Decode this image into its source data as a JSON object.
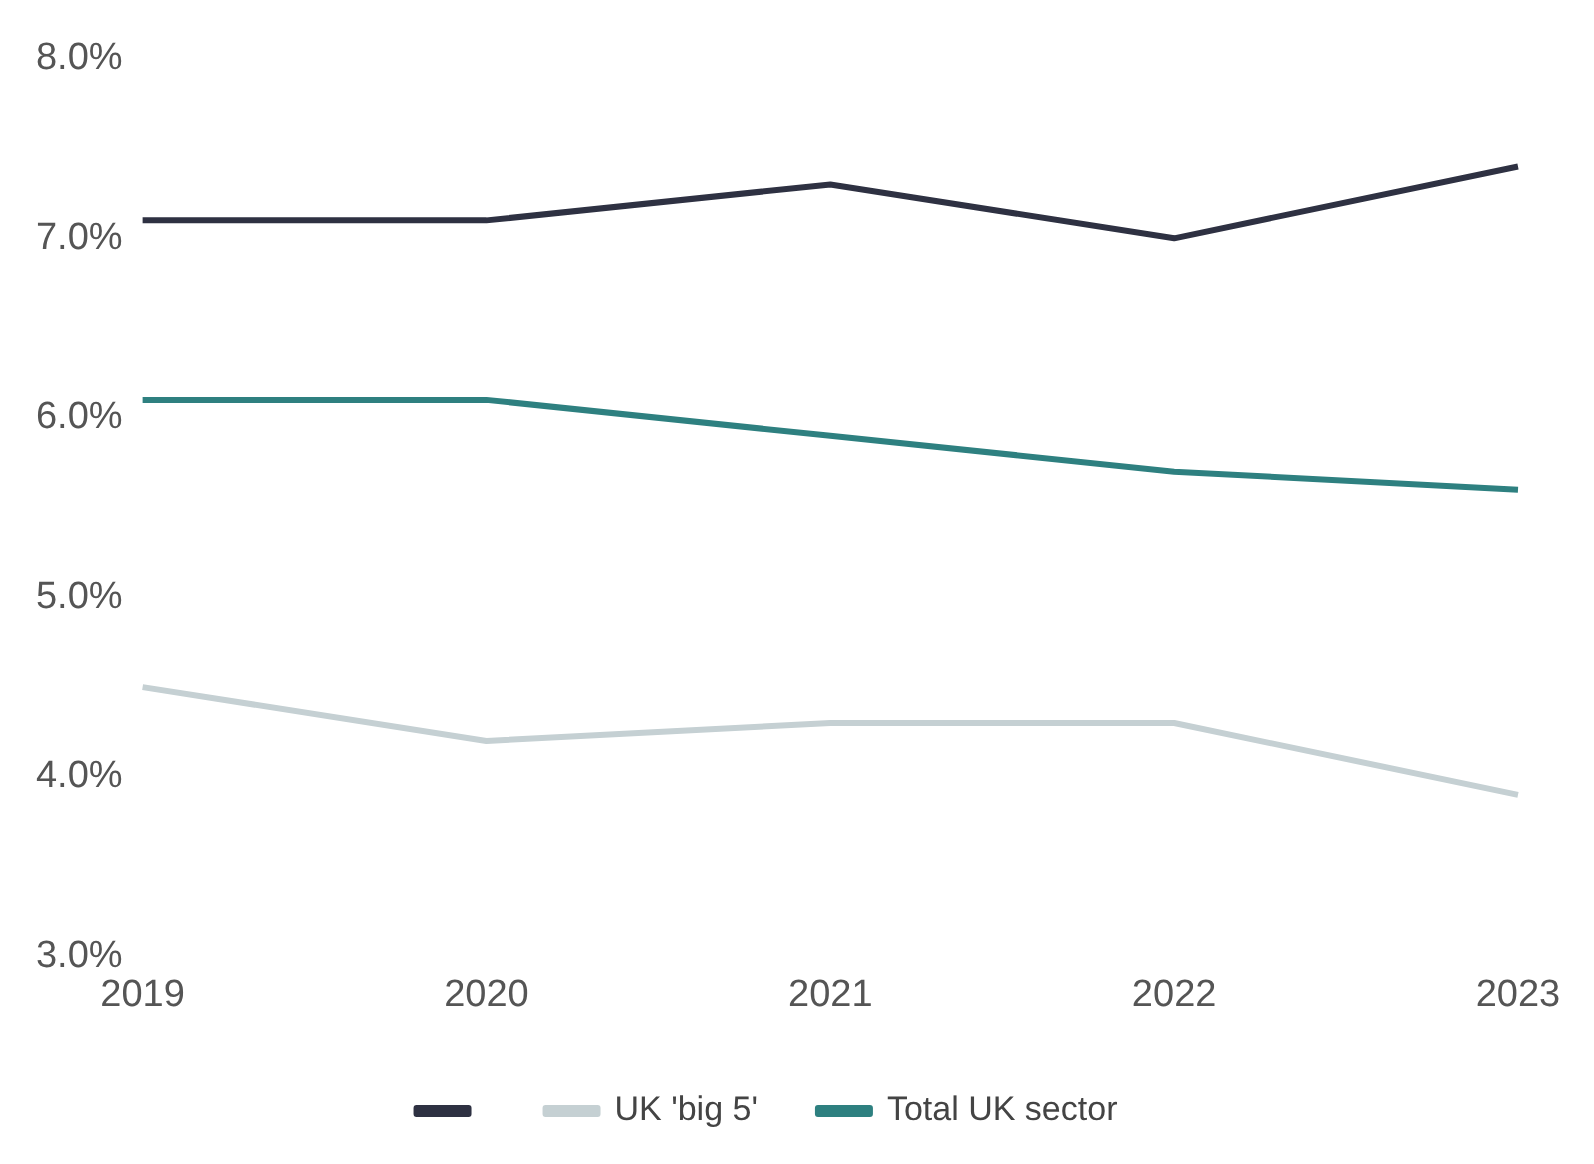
{
  "chart_data": {
    "type": "line",
    "categories": [
      "2019",
      "2020",
      "2021",
      "2022",
      "2023"
    ],
    "series": [
      {
        "color": "#2e3142",
        "values": [
          7.1,
          7.1,
          7.3,
          7.0,
          7.4
        ]
      },
      {
        "name": "UK 'big 5'",
        "color": "#c5d0d3",
        "values": [
          4.5,
          4.2,
          4.3,
          4.3,
          3.9
        ]
      },
      {
        "name": "Total UK sector",
        "color": "#2e8080",
        "values": [
          6.1,
          6.1,
          5.9,
          5.7,
          5.6
        ]
      }
    ],
    "ylim": [
      3,
      8
    ],
    "yticks": [
      {
        "value": 3,
        "label": "3.0%"
      },
      {
        "value": 4,
        "label": "4.0%"
      },
      {
        "value": 5,
        "label": "5.0%"
      },
      {
        "value": 6,
        "label": "6.0%"
      },
      {
        "value": 7,
        "label": "7.0%"
      },
      {
        "value": 8,
        "label": "8.0%"
      }
    ],
    "grid": false,
    "legend": "bottom",
    "marker": "none",
    "line_style": "solid"
  }
}
